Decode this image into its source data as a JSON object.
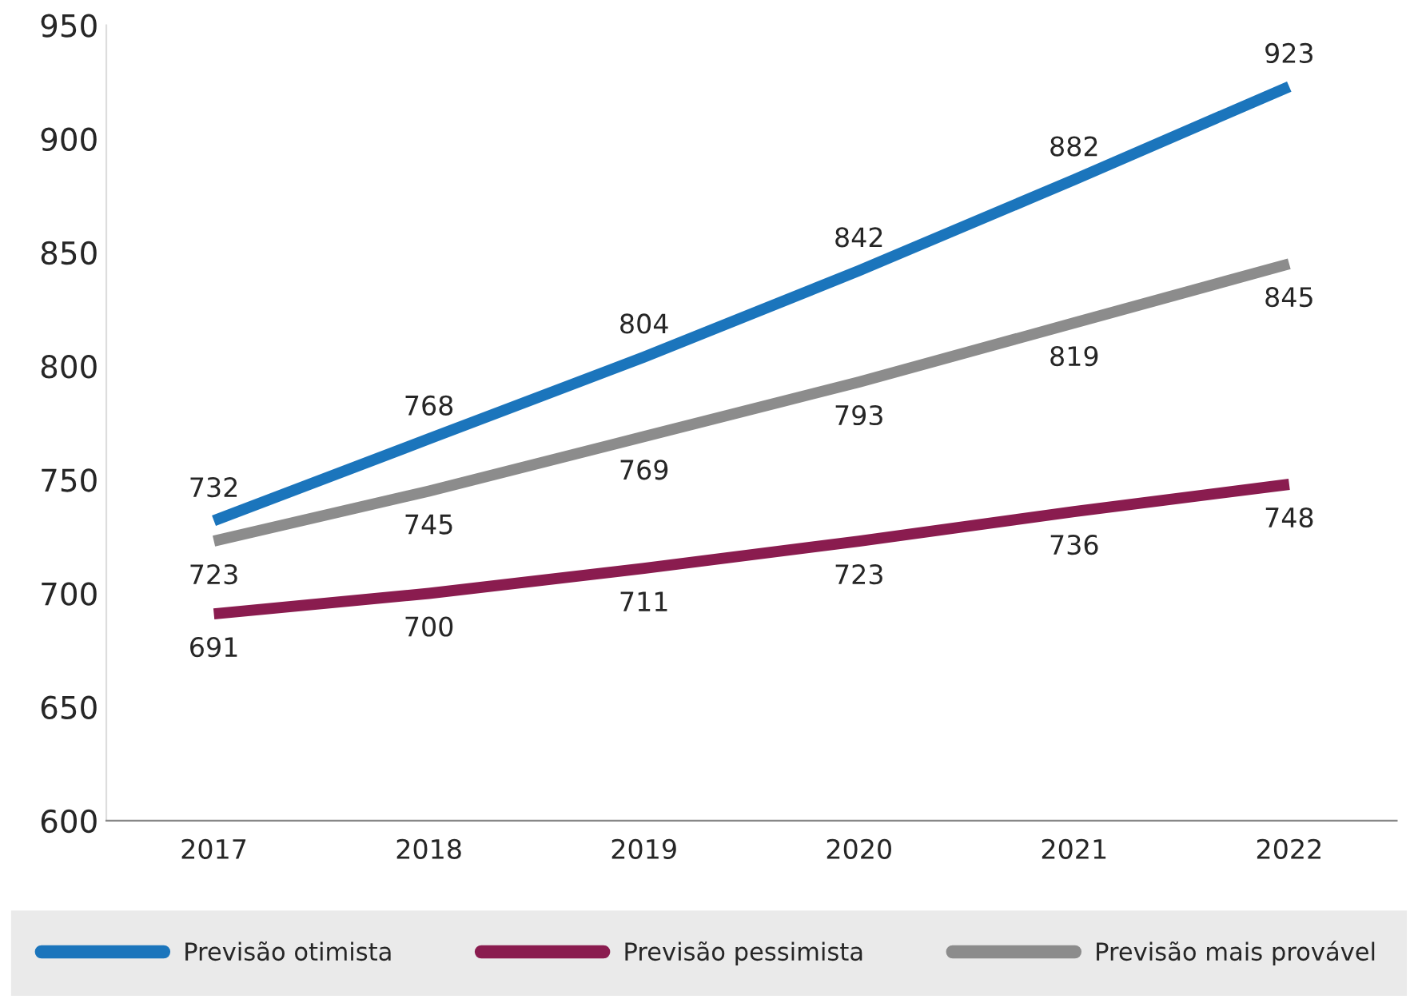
{
  "chart_data": {
    "type": "line",
    "categories": [
      "2017",
      "2018",
      "2019",
      "2020",
      "2021",
      "2022"
    ],
    "series": [
      {
        "name": "Previsão otimista",
        "color": "#1b75bc",
        "values": [
          732,
          768,
          804,
          842,
          882,
          923
        ]
      },
      {
        "name": "Previsão pessimista",
        "color": "#8a1c4f",
        "values": [
          691,
          700,
          711,
          723,
          736,
          748
        ]
      },
      {
        "name": "Previsão mais provável",
        "color": "#8c8c8c",
        "values": [
          723,
          745,
          769,
          793,
          819,
          845
        ]
      }
    ],
    "ylim": [
      600,
      950
    ],
    "yticks": [
      600,
      650,
      700,
      750,
      800,
      850,
      900,
      950
    ],
    "data_labels": true,
    "legend": "bottom",
    "grid": false,
    "marker": "none",
    "line_style": "solid"
  }
}
